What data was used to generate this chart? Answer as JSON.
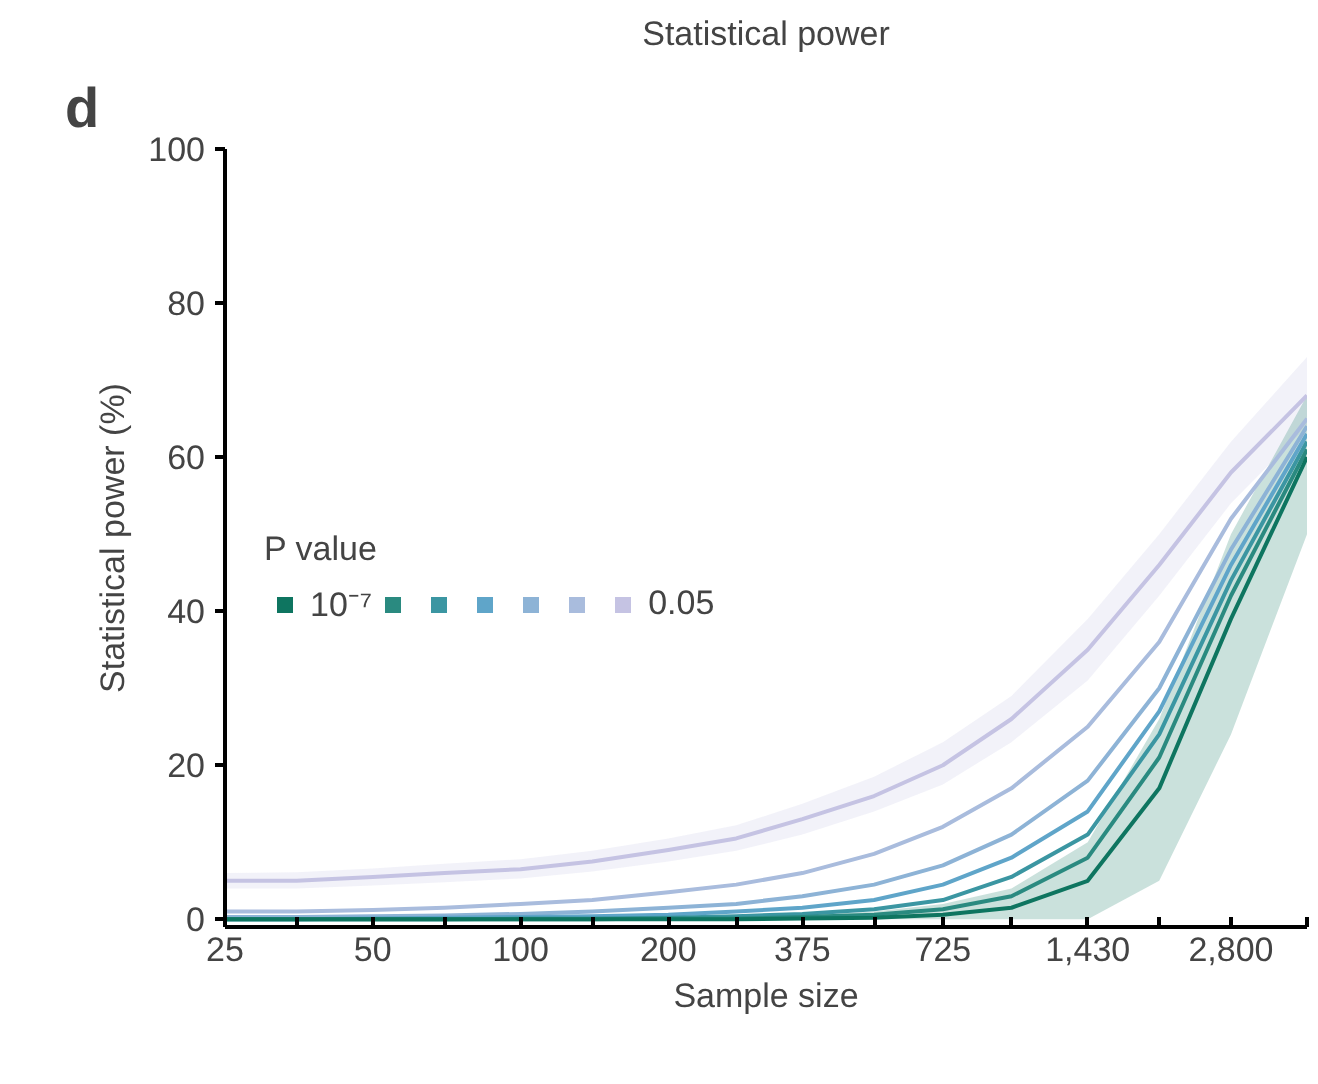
{
  "chart_data": {
    "type": "line",
    "title": "Statistical power",
    "xlabel": "Sample size",
    "ylabel": "Statistical power (%)",
    "legend_title": "P value",
    "annotations": [
      "d"
    ],
    "x": [
      25,
      35,
      50,
      70,
      100,
      140,
      200,
      275,
      375,
      525,
      725,
      1000,
      1430,
      2000,
      2800,
      4000
    ],
    "log": "x",
    "xlim": [
      25,
      4000
    ],
    "ylim": [
      -1,
      100
    ],
    "xticks": [
      25,
      {
        "value": 35,
        "label": null
      },
      50,
      {
        "value": 70,
        "label": null
      },
      100,
      {
        "value": 140,
        "label": null
      },
      200,
      {
        "value": 275,
        "label": null
      },
      375,
      {
        "value": 525,
        "label": null
      },
      725,
      {
        "value": 1000,
        "label": null
      },
      {
        "value": 1430,
        "label": "1,430"
      },
      {
        "value": 2000,
        "label": null
      },
      {
        "value": 2800,
        "label": "2,800"
      },
      {
        "value": 4000,
        "label": null
      }
    ],
    "yticks": [
      0,
      20,
      40,
      60,
      80,
      100
    ],
    "grid": false,
    "legend": "left",
    "marker": "none",
    "line_style": "solid",
    "series": [
      {
        "name": "10⁻⁷",
        "color": "#0e7560",
        "values": [
          0,
          0,
          0,
          0,
          0,
          0,
          0,
          0,
          0.1,
          0.2,
          0.6,
          1.5,
          5,
          17,
          39,
          60
        ],
        "lower": [
          0,
          0,
          0,
          0,
          0,
          0,
          0,
          0,
          0,
          0,
          0,
          0,
          0,
          5,
          24,
          50
        ],
        "upper": [
          0,
          0,
          0,
          0,
          0,
          0,
          0.2,
          0.3,
          0.5,
          1,
          2,
          4,
          10,
          26,
          50,
          68
        ]
      },
      {
        "color": "#2a8a80",
        "values": [
          0,
          0,
          0,
          0,
          0,
          0,
          0.1,
          0.1,
          0.3,
          0.6,
          1.3,
          3,
          8,
          21,
          42,
          61
        ]
      },
      {
        "color": "#3b96a2",
        "values": [
          0,
          0,
          0,
          0,
          0.1,
          0.1,
          0.2,
          0.4,
          0.7,
          1.3,
          2.5,
          5.5,
          11,
          24,
          44,
          62
        ]
      },
      {
        "color": "#5fa5c9",
        "values": [
          0,
          0,
          0.1,
          0.2,
          0.3,
          0.4,
          0.6,
          1,
          1.5,
          2.5,
          4.5,
          8,
          14,
          27,
          46,
          63
        ]
      },
      {
        "color": "#8db3d6",
        "values": [
          0.3,
          0.3,
          0.4,
          0.5,
          0.7,
          1,
          1.5,
          2,
          3,
          4.5,
          7,
          11,
          18,
          30,
          48,
          64
        ]
      },
      {
        "color": "#a9bcdd",
        "values": [
          1,
          1,
          1.2,
          1.5,
          2,
          2.5,
          3.5,
          4.5,
          6,
          8.5,
          12,
          17,
          25,
          36,
          52,
          65
        ]
      },
      {
        "name": "0.05",
        "color": "#c5c3e3",
        "values": [
          5,
          5,
          5.5,
          6,
          6.5,
          7.5,
          9,
          10.5,
          13,
          16,
          20,
          26,
          35,
          46,
          58,
          68
        ],
        "lower": [
          4,
          4,
          4.4,
          4.8,
          5.3,
          6.2,
          7.5,
          8.9,
          11,
          14,
          17.5,
          23,
          31,
          42,
          54,
          64
        ],
        "upper": [
          6,
          6.1,
          6.6,
          7.2,
          7.8,
          8.9,
          10.5,
          12.2,
          15,
          18.5,
          23,
          29,
          39,
          50,
          62,
          73
        ]
      }
    ]
  }
}
